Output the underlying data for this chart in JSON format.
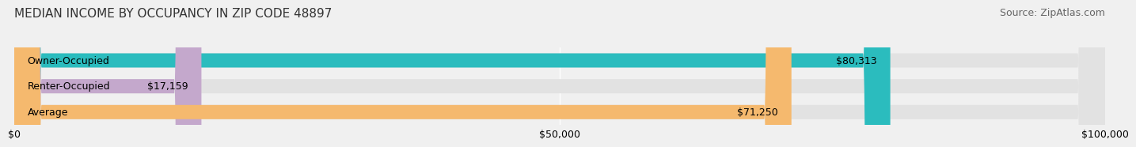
{
  "title": "MEDIAN INCOME BY OCCUPANCY IN ZIP CODE 48897",
  "source": "Source: ZipAtlas.com",
  "categories": [
    "Owner-Occupied",
    "Renter-Occupied",
    "Average"
  ],
  "values": [
    80313,
    17159,
    71250
  ],
  "bar_colors": [
    "#2bbcbe",
    "#c4a8cc",
    "#f5b96e"
  ],
  "value_labels": [
    "$80,313",
    "$17,159",
    "$71,250"
  ],
  "xlim": [
    0,
    100000
  ],
  "xticks": [
    0,
    50000,
    100000
  ],
  "xtick_labels": [
    "$0",
    "$50,000",
    "$100,000"
  ],
  "background_color": "#f0f0f0",
  "bar_bg_color": "#e2e2e2",
  "title_fontsize": 11,
  "source_fontsize": 9,
  "label_fontsize": 9,
  "bar_height": 0.55
}
